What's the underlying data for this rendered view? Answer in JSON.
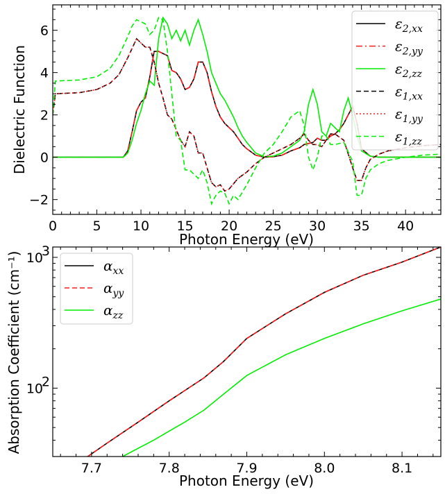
{
  "chart_data": [
    {
      "type": "line",
      "xlabel": "Photon Energy (eV)",
      "ylabel": "Dielectric Function",
      "xlim": [
        0,
        44
      ],
      "ylim": [
        -2.7,
        7.2
      ],
      "xticks": [
        0,
        5,
        10,
        15,
        20,
        25,
        30,
        35,
        40
      ],
      "yticks": [
        -2,
        0,
        2,
        4,
        6
      ],
      "xtick_labels": [
        "0",
        "5",
        "10",
        "15",
        "20",
        "25",
        "30",
        "35",
        "40"
      ],
      "ytick_labels": [
        "−2",
        "0",
        "2",
        "4",
        "6"
      ],
      "legend_position": "top-right",
      "series": [
        {
          "name": "ε",
          "sub": "2,xx",
          "color": "#000000",
          "dash": "solid",
          "x": [
            0,
            8,
            8.5,
            9,
            9.5,
            10,
            10.5,
            11,
            11.5,
            12,
            12.5,
            13,
            13.5,
            14,
            14.5,
            15,
            15.5,
            16,
            16.5,
            17,
            17.5,
            18,
            18.5,
            19,
            19.5,
            20,
            20.5,
            21,
            21.5,
            22,
            23,
            24,
            25,
            26,
            27,
            28,
            28.5,
            29,
            29.5,
            30,
            30.5,
            31,
            31.5,
            32,
            32.5,
            33,
            33.5,
            34,
            34.5,
            35,
            36,
            37,
            44
          ],
          "y": [
            0,
            0,
            0.3,
            1.2,
            2.2,
            2.6,
            2.8,
            3.8,
            5.0,
            5.0,
            4.9,
            4.8,
            4.1,
            4.0,
            3.7,
            3.2,
            3.3,
            3.7,
            4.5,
            4.5,
            4.0,
            3.1,
            2.4,
            1.9,
            1.6,
            1.4,
            1.2,
            0.9,
            0.6,
            0.4,
            0.1,
            0.0,
            0.02,
            0.1,
            0.3,
            0.45,
            0.6,
            0.65,
            0.7,
            0.9,
            0.8,
            0.8,
            1.0,
            1.1,
            1.3,
            1.6,
            2.0,
            2.4,
            1.6,
            0.4,
            0.05,
            0,
            0
          ]
        },
        {
          "name": "ε",
          "sub": "2,yy",
          "color": "#ff1a1a",
          "dash": "dashdot",
          "x": [
            0,
            8,
            8.5,
            9,
            9.5,
            10,
            10.5,
            11,
            11.5,
            12,
            12.5,
            13,
            13.5,
            14,
            14.5,
            15,
            15.5,
            16,
            16.5,
            17,
            17.5,
            18,
            18.5,
            19,
            19.5,
            20,
            20.5,
            21,
            21.5,
            22,
            23,
            24,
            25,
            26,
            27,
            28,
            28.5,
            29,
            29.5,
            30,
            30.5,
            31,
            31.5,
            32,
            32.5,
            33,
            33.5,
            34,
            34.5,
            35,
            36,
            37,
            44
          ],
          "y": [
            0,
            0,
            0.3,
            1.2,
            2.2,
            2.6,
            2.8,
            3.8,
            5.0,
            5.0,
            4.9,
            4.8,
            4.1,
            4.0,
            3.7,
            3.2,
            3.3,
            3.7,
            4.5,
            4.5,
            4.0,
            3.1,
            2.4,
            1.9,
            1.6,
            1.4,
            1.2,
            0.9,
            0.6,
            0.4,
            0.1,
            0.0,
            0.02,
            0.1,
            0.3,
            0.45,
            0.6,
            0.65,
            0.7,
            0.9,
            0.8,
            0.8,
            1.0,
            1.1,
            1.3,
            1.6,
            2.0,
            2.4,
            1.6,
            0.4,
            0.05,
            0,
            0
          ]
        },
        {
          "name": "ε",
          "sub": "2,zz",
          "color": "#00ee00",
          "dash": "solid",
          "x": [
            0,
            8,
            8.5,
            9,
            9.5,
            10,
            10.5,
            11,
            11.5,
            12,
            12.5,
            13,
            13.5,
            14,
            14.5,
            15,
            15.5,
            16,
            16.5,
            17,
            17.5,
            18,
            18.5,
            19,
            19.5,
            20,
            20.5,
            21,
            21.5,
            22,
            23,
            24,
            25,
            26,
            27,
            28,
            28.5,
            29,
            29.5,
            30,
            30.5,
            31,
            31.5,
            32,
            32.5,
            33,
            33.5,
            34,
            34.5,
            35,
            36,
            37,
            44
          ],
          "y": [
            0,
            0,
            0.2,
            0.8,
            1.6,
            2.2,
            3.0,
            3.6,
            3.4,
            5.6,
            6.6,
            6.3,
            5.6,
            6.0,
            5.5,
            6.0,
            5.3,
            6.0,
            6.5,
            5.8,
            5.0,
            4.0,
            3.5,
            3.0,
            2.7,
            2.3,
            1.9,
            1.4,
            1.0,
            0.7,
            0.2,
            0.02,
            0.05,
            0.2,
            0.5,
            0.8,
            1.2,
            2.5,
            3.2,
            2.5,
            1.2,
            1.0,
            1.6,
            1.4,
            1.2,
            2.2,
            2.8,
            2.0,
            1.0,
            0.3,
            0.05,
            0,
            0
          ]
        },
        {
          "name": "ε",
          "sub": "1,xx",
          "color": "#000000",
          "dash": "dashed",
          "x": [
            0,
            0.3,
            3,
            5,
            6.5,
            7.5,
            8.5,
            9.5,
            10,
            10.5,
            11,
            11.5,
            12,
            12.5,
            13,
            13.5,
            14,
            14.5,
            15,
            15.5,
            16,
            16.5,
            17,
            17.5,
            18,
            18.5,
            19,
            19.5,
            20,
            21,
            22,
            23,
            24,
            25,
            26,
            27,
            28,
            28.5,
            29,
            29.5,
            30,
            30.5,
            31,
            31.5,
            32,
            33,
            34,
            34.5,
            35,
            35.5,
            36,
            37,
            38,
            40,
            42,
            44
          ],
          "y": [
            2.0,
            3.0,
            3.05,
            3.2,
            3.5,
            3.9,
            4.7,
            5.6,
            5.4,
            5.2,
            5.2,
            4.5,
            3.5,
            2.8,
            2.0,
            1.8,
            1.3,
            0.8,
            0.5,
            1.2,
            1.0,
            0.2,
            0.2,
            -0.5,
            -1.2,
            -1.4,
            -1.3,
            -1.6,
            -1.5,
            -1.0,
            -0.7,
            -0.3,
            0.0,
            0.2,
            0.4,
            0.6,
            0.9,
            1.1,
            0.8,
            0.6,
            0.6,
            0.5,
            0.8,
            1.1,
            1.1,
            0.8,
            -0.5,
            -1.1,
            -1.1,
            -0.5,
            -0.1,
            0.15,
            0.3,
            0.45,
            0.55,
            0.6
          ]
        },
        {
          "name": "ε",
          "sub": "1,yy",
          "color": "#ff1a1a",
          "dash": "dotted",
          "x": [
            0,
            0.3,
            3,
            5,
            6.5,
            7.5,
            8.5,
            9.5,
            10,
            10.5,
            11,
            11.5,
            12,
            12.5,
            13,
            13.5,
            14,
            14.5,
            15,
            15.5,
            16,
            16.5,
            17,
            17.5,
            18,
            18.5,
            19,
            19.5,
            20,
            21,
            22,
            23,
            24,
            25,
            26,
            27,
            28,
            28.5,
            29,
            29.5,
            30,
            30.5,
            31,
            31.5,
            32,
            33,
            34,
            34.5,
            35,
            35.5,
            36,
            37,
            38,
            40,
            42,
            44
          ],
          "y": [
            2.0,
            3.0,
            3.05,
            3.2,
            3.5,
            3.9,
            4.7,
            5.6,
            5.4,
            5.2,
            5.2,
            4.5,
            3.5,
            2.8,
            2.0,
            1.8,
            1.3,
            0.8,
            0.5,
            1.2,
            1.0,
            0.2,
            0.2,
            -0.5,
            -1.2,
            -1.4,
            -1.3,
            -1.6,
            -1.5,
            -1.0,
            -0.7,
            -0.3,
            0.0,
            0.2,
            0.4,
            0.6,
            0.9,
            1.1,
            0.8,
            0.6,
            0.6,
            0.5,
            0.8,
            1.1,
            1.1,
            0.8,
            -0.5,
            -1.1,
            -1.1,
            -0.5,
            -0.1,
            0.15,
            0.3,
            0.45,
            0.55,
            0.6
          ]
        },
        {
          "name": "ε",
          "sub": "1,zz",
          "color": "#00ee00",
          "dash": "dashed",
          "x": [
            0,
            0.3,
            3,
            5,
            6.5,
            7.5,
            8.5,
            9,
            9.5,
            10,
            10.5,
            11,
            11.5,
            12,
            12.5,
            13,
            13.5,
            14,
            14.5,
            15,
            15.5,
            16,
            16.5,
            17,
            17.5,
            18,
            18.5,
            19,
            19.5,
            20,
            20.5,
            21,
            22,
            23,
            24,
            25,
            26,
            27,
            28,
            28.5,
            29,
            29.5,
            30,
            30.5,
            31,
            31.5,
            32,
            33,
            34,
            34.5,
            35,
            35.5,
            36,
            37,
            38,
            40,
            42,
            44
          ],
          "y": [
            2.0,
            3.6,
            3.65,
            3.8,
            4.2,
            4.8,
            5.7,
            6.2,
            6.5,
            6.4,
            6.3,
            5.8,
            6.0,
            6.6,
            6.5,
            5.0,
            3.0,
            1.0,
            0.8,
            -0.6,
            -0.6,
            -0.8,
            -1.0,
            -0.6,
            -1.2,
            -2.2,
            -1.8,
            -1.6,
            -1.7,
            -2.2,
            -1.8,
            -2.0,
            -1.3,
            -0.5,
            0.2,
            0.6,
            1.2,
            1.9,
            2.2,
            1.5,
            0.0,
            -0.6,
            0.0,
            1.0,
            1.0,
            0.6,
            0.6,
            0.7,
            -0.2,
            -1.8,
            -1.8,
            -1.0,
            -0.6,
            -0.3,
            -0.15,
            0.0,
            0.1,
            0.15
          ]
        }
      ]
    },
    {
      "type": "line",
      "yscale": "log",
      "xlabel": "Photon Energy (eV)",
      "ylabel": "Absorption Coefficient (cm⁻¹)",
      "xlim": [
        7.65,
        8.15
      ],
      "ylim": [
        30,
        1200
      ],
      "xticks": [
        7.7,
        7.8,
        7.9,
        8.0,
        8.1
      ],
      "xtick_labels": [
        "7.7",
        "7.8",
        "7.9",
        "8.0",
        "8.1"
      ],
      "yticks": [
        100,
        1000
      ],
      "ytick_labels_base": [
        "10",
        "10"
      ],
      "ytick_labels_exp": [
        "2",
        "3"
      ],
      "legend_position": "top-left",
      "series": [
        {
          "name": "α",
          "sub": "xx",
          "color": "#000000",
          "dash": "solid",
          "x": [
            7.695,
            7.72,
            7.76,
            7.8,
            7.845,
            7.87,
            7.9,
            7.95,
            8.0,
            8.05,
            8.1,
            8.15
          ],
          "y": [
            30,
            38,
            55,
            80,
            120,
            160,
            240,
            370,
            540,
            730,
            920,
            1200
          ]
        },
        {
          "name": "α",
          "sub": "yy",
          "color": "#ff1a1a",
          "dash": "dashed",
          "x": [
            7.695,
            7.72,
            7.76,
            7.8,
            7.845,
            7.87,
            7.9,
            7.95,
            8.0,
            8.05,
            8.1,
            8.15
          ],
          "y": [
            30,
            38,
            55,
            80,
            120,
            160,
            240,
            370,
            540,
            730,
            920,
            1200
          ]
        },
        {
          "name": "α",
          "sub": "zz",
          "color": "#00ee00",
          "dash": "solid",
          "x": [
            7.74,
            7.78,
            7.82,
            7.845,
            7.87,
            7.9,
            7.95,
            8.0,
            8.05,
            8.1,
            8.15
          ],
          "y": [
            30,
            40,
            55,
            68,
            90,
            125,
            180,
            240,
            310,
            390,
            480
          ]
        }
      ]
    }
  ]
}
